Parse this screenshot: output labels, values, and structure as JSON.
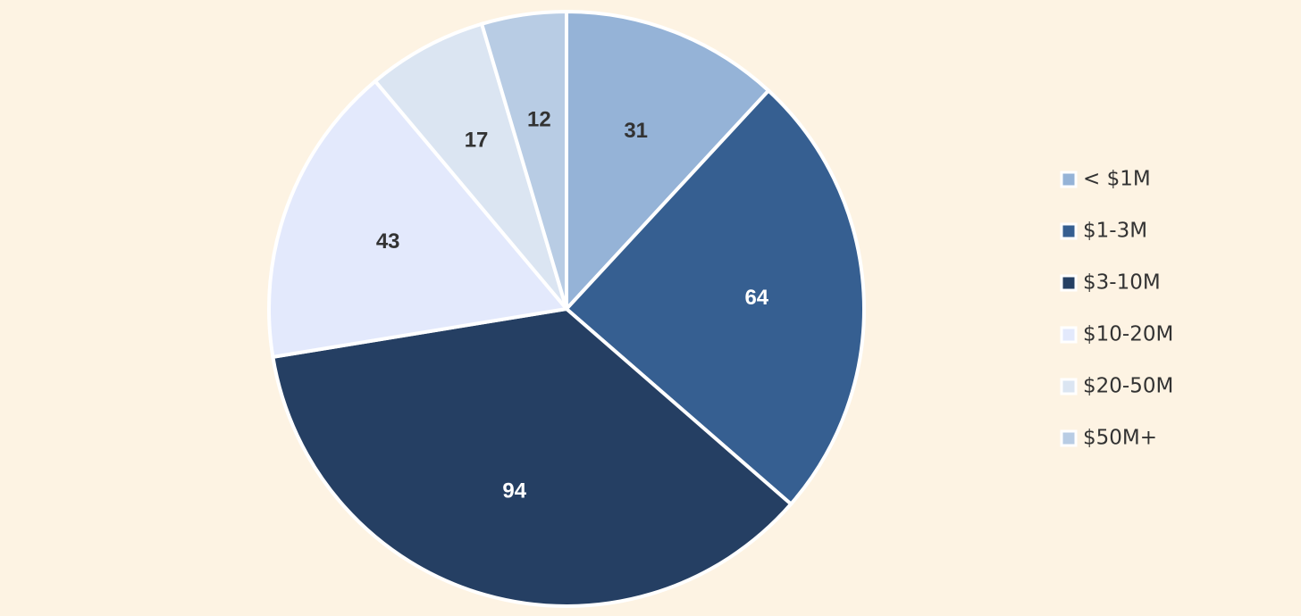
{
  "chart_data": {
    "type": "pie",
    "categories": [
      "< $1M",
      "$1-3M",
      "$3-10M",
      "$10-20M",
      "$20-50M",
      "$50M+"
    ],
    "values": [
      31,
      64,
      94,
      43,
      17,
      12
    ],
    "colors": [
      "#95b3d7",
      "#365f91",
      "#253f63",
      "#e3e9fc",
      "#dbe5f2",
      "#b8cce4"
    ],
    "legend": "right"
  }
}
